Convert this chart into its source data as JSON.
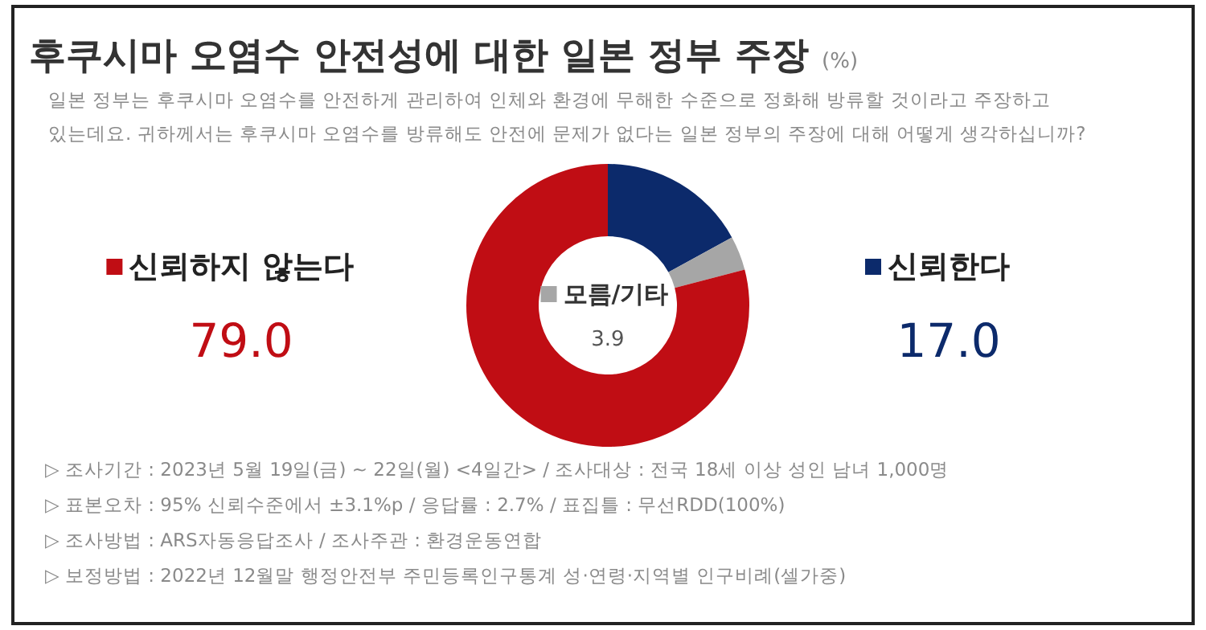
{
  "chart_data": {
    "type": "donut",
    "title": "후쿠시마 오염수 안전성에 대한 일본 정부 주장",
    "subtitle": "일본 정부는 후쿠시마 오염수를 안전하게 관리하여 인체와 환경에 무해한 수준으로 정화해 방류할 것이라고 주장하고 있는데요. 귀하께서는 후쿠시마 오염수를 방류해도 안전에 문제가 없다는 일본 정부의 주장에 대해 어떻게 생각하십니까?",
    "categories": [
      "신뢰한다",
      "모름/기타",
      "신뢰하지 않는다"
    ],
    "values": [
      17.0,
      3.9,
      79.0
    ],
    "colors": [
      "#0c2a6b",
      "#a6a6a6",
      "#c00d14"
    ],
    "value_labels": [
      "17.0",
      "3.9",
      "79.0"
    ],
    "legend": "top",
    "annotations": [
      "(%)",
      "▷ 조사기간 : 2023년 5월 19일(금) ~ 22일(월) <4일간> / 조사대상 : 전국 18세 이상 성인 남녀 1,000명",
      "▷ 표본오차 : 95% 신뢰수준에서 ±3.1%p / 응답률 : 2.7% / 표집틀 : 무선RDD(100%)",
      "▷ 조사방법 : ARS자동응답조사 / 조사주관 : 환경운동연합",
      "▷ 보정방법 : 2022년 12월말 행정안전부 주민등록인구통계 성·연령·지역별 인구비례(셀가중)"
    ]
  }
}
